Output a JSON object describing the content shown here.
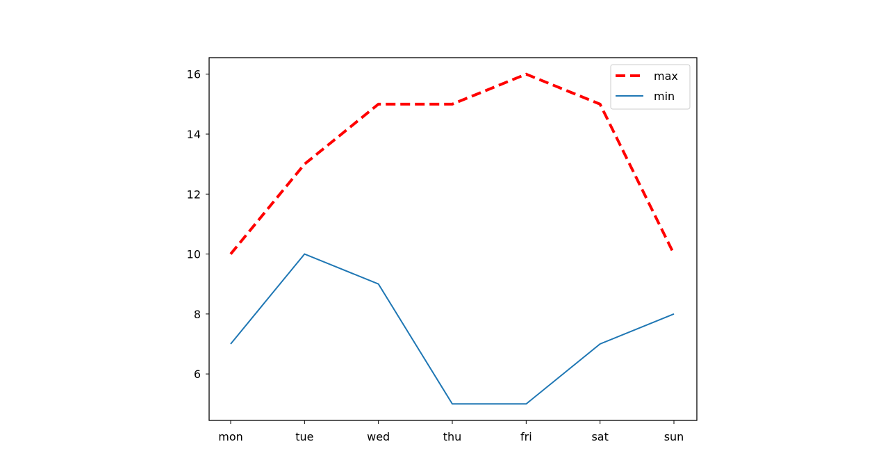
{
  "chart_data": {
    "type": "line",
    "title": "",
    "xlabel": "",
    "ylabel": "",
    "categories": [
      "mon",
      "tue",
      "wed",
      "thu",
      "fri",
      "sat",
      "sun"
    ],
    "series": [
      {
        "name": "max",
        "values": [
          10,
          13,
          15,
          15,
          16,
          15,
          10
        ],
        "color": "#ff0000",
        "style": "dashed"
      },
      {
        "name": "min",
        "values": [
          7,
          10,
          9,
          5,
          5,
          7,
          8
        ],
        "color": "#1f77b4",
        "style": "solid"
      }
    ],
    "ylim": [
      4.45,
      16.55
    ],
    "yticks": [
      6,
      8,
      10,
      12,
      14,
      16
    ],
    "grid": false,
    "legend": "top-right"
  }
}
